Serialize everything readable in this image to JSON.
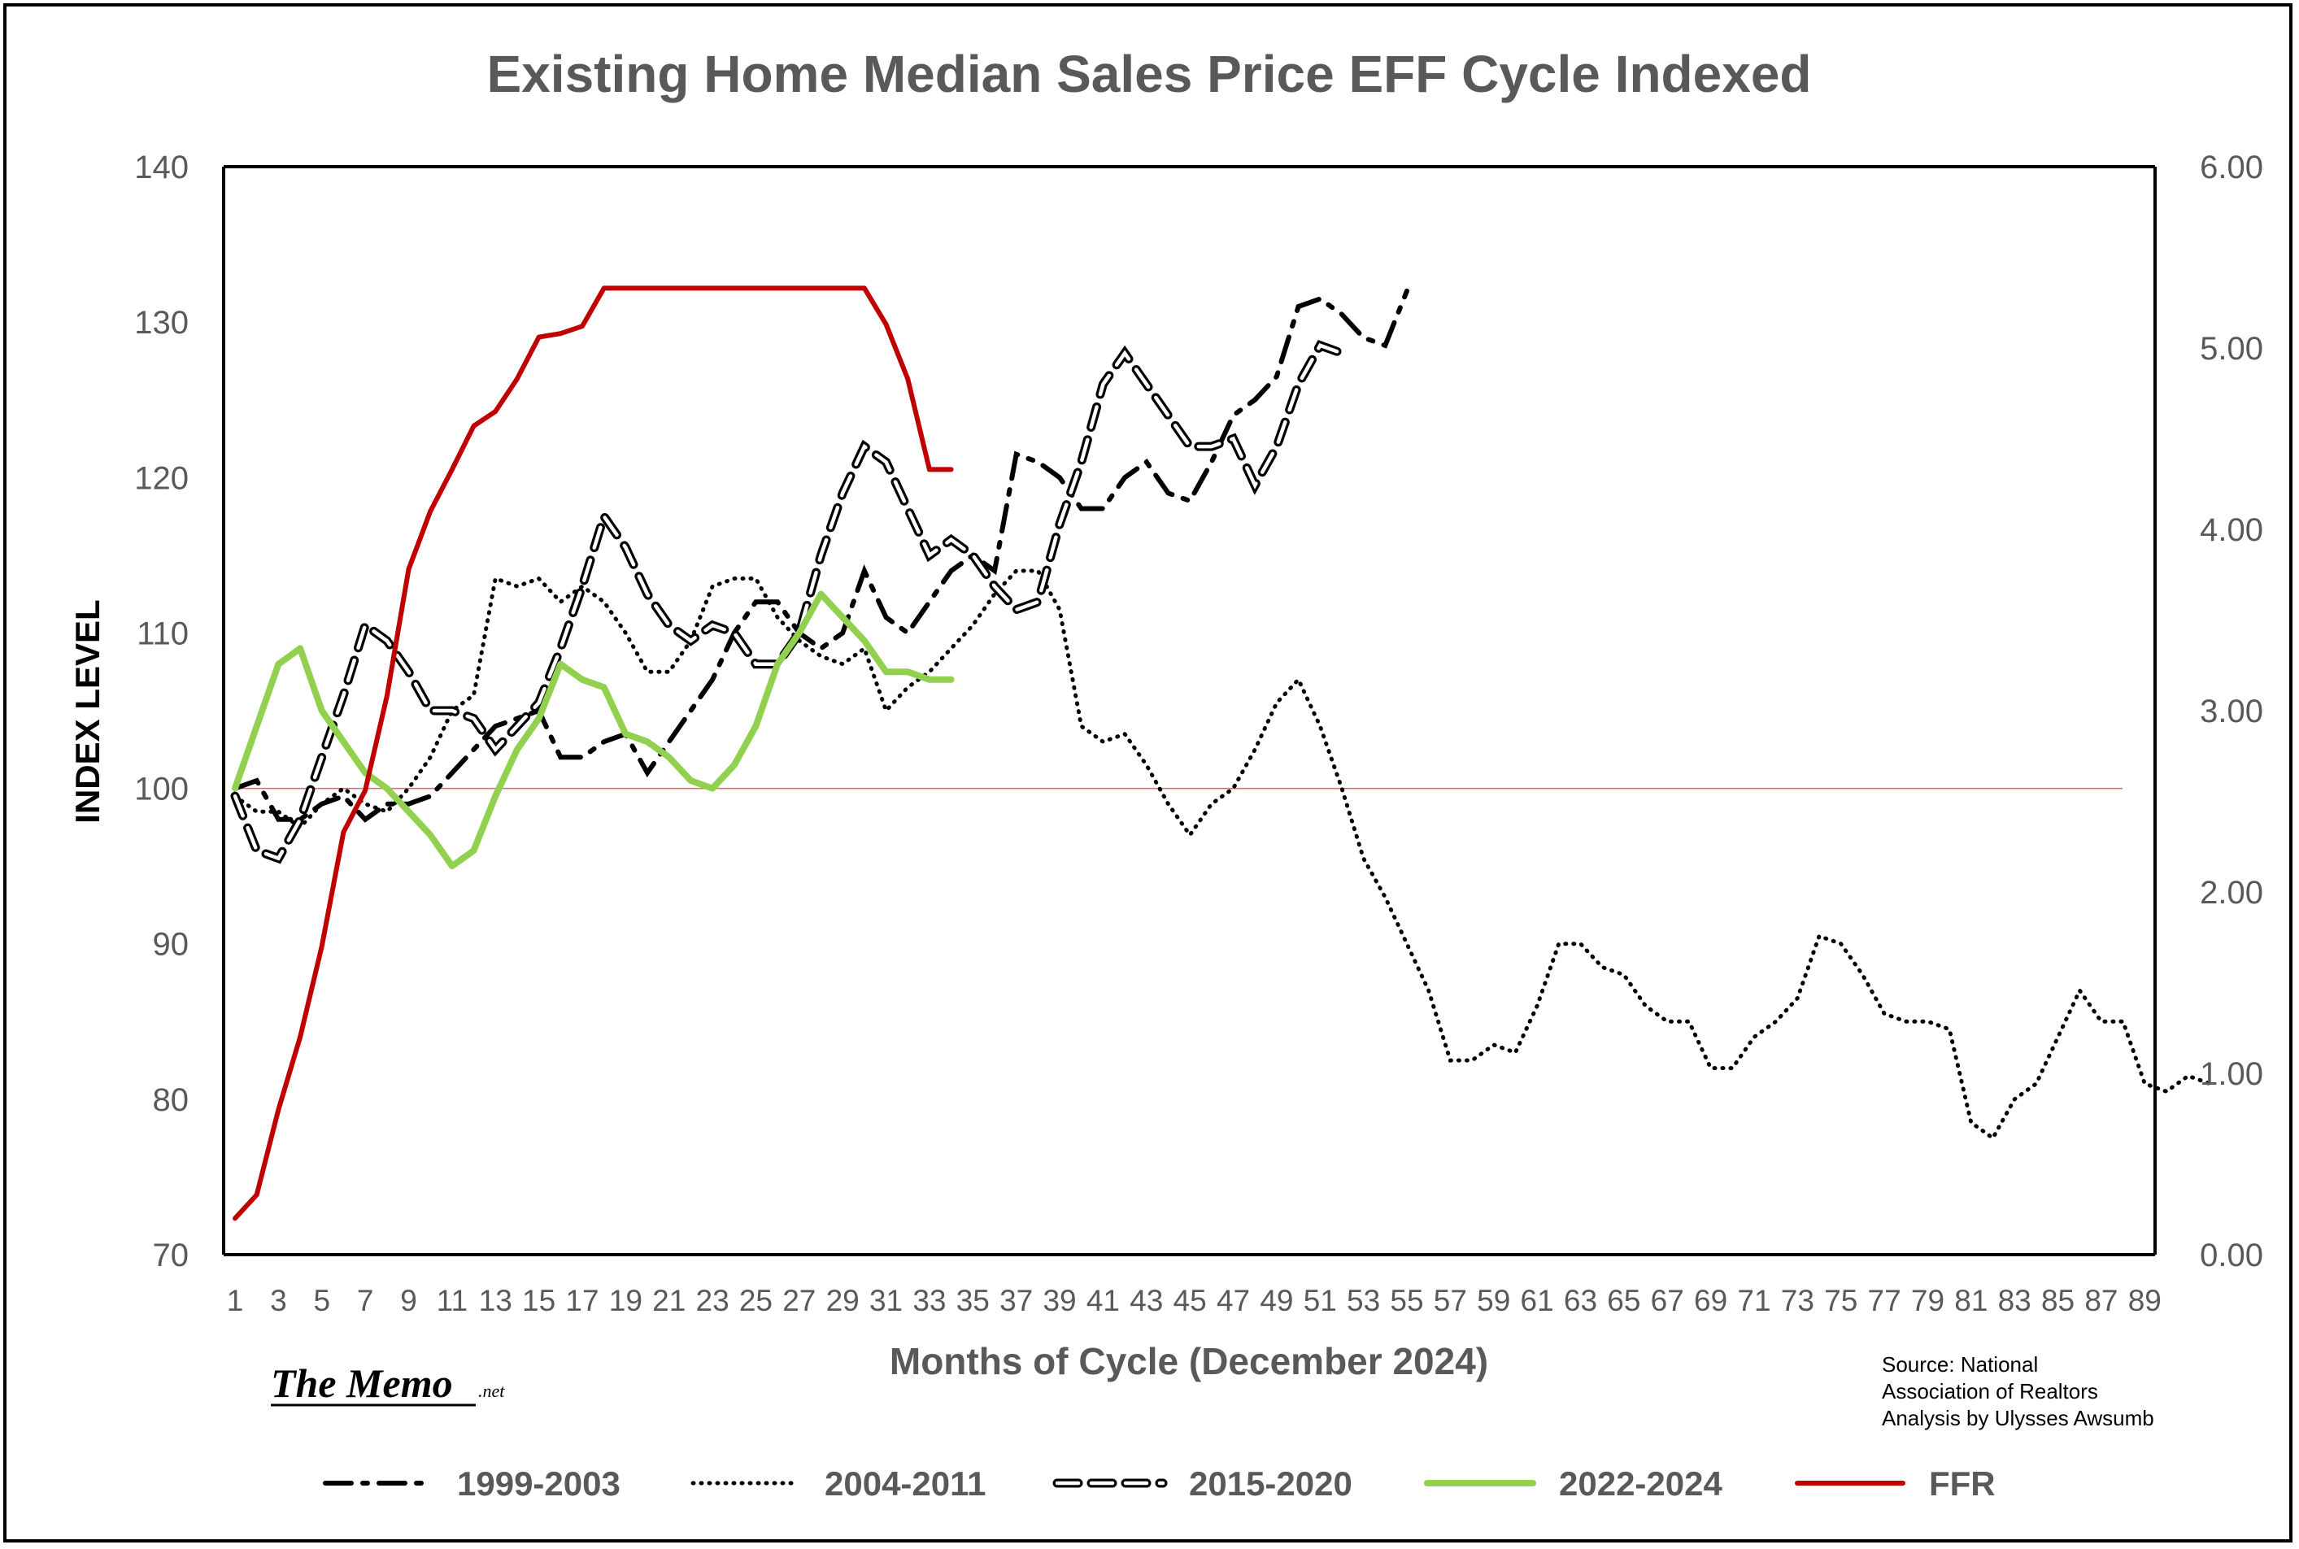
{
  "chart_data": {
    "type": "line",
    "title": "Existing Home Median Sales Price EFF Cycle Indexed",
    "xlabel": "Months of Cycle (December 2024)",
    "ylabel": "INDEX LEVEL",
    "ylim": [
      70,
      140
    ],
    "y2lim": [
      0,
      6
    ],
    "yticks": [
      "70",
      "80",
      "90",
      "100",
      "110",
      "120",
      "130",
      "140"
    ],
    "y2ticks": [
      "0.00",
      "1.00",
      "2.00",
      "3.00",
      "4.00",
      "5.00",
      "6.00"
    ],
    "xlim": [
      1,
      90
    ],
    "xticks": [
      "1",
      "3",
      "5",
      "7",
      "9",
      "11",
      "13",
      "15",
      "17",
      "19",
      "21",
      "23",
      "25",
      "27",
      "29",
      "31",
      "33",
      "35",
      "37",
      "39",
      "41",
      "43",
      "45",
      "47",
      "49",
      "51",
      "53",
      "55",
      "57",
      "59",
      "61",
      "63",
      "65",
      "67",
      "69",
      "71",
      "73",
      "75",
      "77",
      "79",
      "81",
      "83",
      "85",
      "87",
      "89"
    ],
    "reference_line": 100,
    "grid": false,
    "legend_position": "bottom",
    "series": [
      {
        "name": "1999-2003",
        "axis": "left",
        "style": "dashdot",
        "color": "#000000",
        "values": [
          100,
          100.5,
          98,
          98,
          99,
          99.5,
          98,
          99,
          99,
          99.5,
          101,
          102.5,
          104,
          104.5,
          105,
          102,
          102,
          103,
          103.5,
          101,
          103,
          105,
          107,
          110,
          112,
          112,
          110,
          109,
          110,
          114,
          111,
          110,
          112,
          114,
          115,
          114,
          121.5,
          121,
          120,
          118,
          118,
          120,
          121,
          119,
          118.5,
          121,
          124,
          125,
          126.5,
          131,
          131.5,
          130.5,
          129,
          128.5,
          132
        ]
      },
      {
        "name": "2004-2011",
        "axis": "left",
        "style": "dotted",
        "color": "#000000",
        "values": [
          99.5,
          98.5,
          98.5,
          97.5,
          99,
          100,
          99,
          98.5,
          100,
          102,
          105,
          106,
          113.5,
          113,
          113.5,
          112,
          113,
          112,
          110,
          107.5,
          107.5,
          109.5,
          113,
          113.5,
          113.5,
          111,
          109.5,
          108.5,
          108,
          109,
          105,
          106.5,
          107.5,
          109,
          110.5,
          112.5,
          114,
          114,
          111.5,
          104,
          103,
          103.5,
          101.5,
          99,
          97,
          99,
          100,
          102.5,
          105.5,
          107,
          104,
          100,
          95.5,
          93,
          90,
          87,
          82.5,
          82.5,
          83.5,
          83,
          86,
          90,
          90,
          88.5,
          88,
          86,
          85,
          85,
          82,
          82,
          84,
          85,
          86.5,
          90.5,
          90,
          88,
          85.5,
          85,
          85,
          84.5,
          78.5,
          77.5,
          80,
          81,
          84,
          87,
          85,
          85,
          81,
          80.5,
          81.5,
          81
        ]
      },
      {
        "name": "2015-2020",
        "axis": "left",
        "style": "long-dash-outline",
        "color": "#000000",
        "values": [
          99.5,
          96,
          95.5,
          98,
          102,
          106,
          110.5,
          109.5,
          107.5,
          105,
          105,
          104.5,
          102.5,
          104,
          105.5,
          109,
          113,
          117.5,
          115.5,
          112.5,
          110.5,
          109.5,
          110.5,
          110,
          108,
          108,
          110,
          115,
          119,
          122,
          121,
          118,
          115,
          116,
          115,
          113,
          111.5,
          112,
          117,
          121,
          126,
          128,
          126,
          124,
          122,
          122,
          122.5,
          119.5,
          122,
          126,
          128.5,
          128
        ]
      },
      {
        "name": "2022-2024",
        "axis": "left",
        "style": "solid",
        "color": "#92D050",
        "values": [
          100,
          104,
          108,
          109,
          105,
          103,
          101,
          100,
          98.5,
          97,
          95,
          96,
          99.5,
          102.5,
          104.5,
          108,
          107,
          106.5,
          103.5,
          103,
          102,
          100.5,
          100,
          101.5,
          104,
          108,
          110,
          112.5,
          111,
          109.5,
          107.5,
          107.5,
          107,
          107
        ]
      },
      {
        "name": "FFR",
        "axis": "right",
        "style": "solid",
        "color": "#C00000",
        "values": [
          0.2,
          0.33,
          0.8,
          1.2,
          1.7,
          2.33,
          2.56,
          3.08,
          3.78,
          4.1,
          4.33,
          4.57,
          4.65,
          4.83,
          5.06,
          5.08,
          5.12,
          5.33,
          5.33,
          5.33,
          5.33,
          5.33,
          5.33,
          5.33,
          5.33,
          5.33,
          5.33,
          5.33,
          5.33,
          5.33,
          5.13,
          4.83,
          4.33,
          4.33
        ]
      }
    ]
  },
  "annotations": {
    "logo_main": "The Memo",
    "logo_suffix": ".net",
    "source_lines": [
      "Source: National",
      "Association of Realtors",
      "Analysis by Ulysses Awsumb"
    ]
  }
}
